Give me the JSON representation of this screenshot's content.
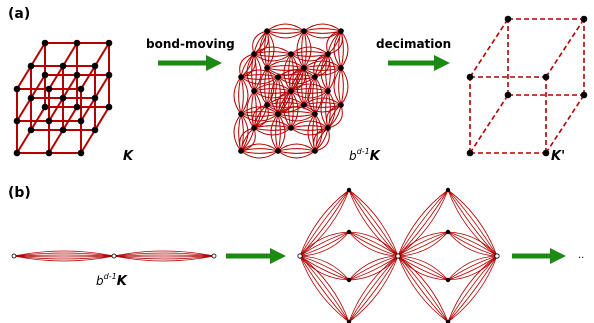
{
  "panels": {
    "a_label": "(a)",
    "b_label": "(b)"
  },
  "steps": {
    "bond_moving": "bond-moving",
    "decimation": "decimation"
  },
  "captions": {
    "k": "K",
    "k_prime": "K'",
    "b_base": "b",
    "b_exp": "d-1",
    "ellipsis": ".."
  },
  "colors": {
    "edge": "#b30000",
    "arrow": "#1a8a12",
    "node": "#000000"
  }
}
